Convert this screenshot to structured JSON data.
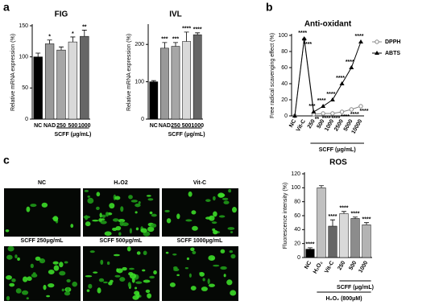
{
  "chart_data": [
    {
      "type": "bar",
      "panel": "a",
      "title": "FIG",
      "ylabel": "Relative mRNA expression (%)",
      "xlabel": "SCFF (μg/mL)",
      "categories": [
        "NC",
        "NAD",
        "250",
        "500",
        "1000"
      ],
      "values": [
        100,
        121,
        111,
        124,
        133
      ],
      "error": [
        6,
        6,
        5,
        8,
        10
      ],
      "significance": [
        "",
        "*",
        "",
        "*",
        "**"
      ],
      "colors": [
        "#000000",
        "#999999",
        "#a6a6a6",
        "#d9d9d9",
        "#666666"
      ],
      "ylim": [
        0,
        150
      ],
      "yticks": [
        0,
        50,
        100,
        150
      ]
    },
    {
      "type": "bar",
      "title": "IVL",
      "ylabel": "Relative mRNA expression (%)",
      "xlabel": "SCFF (μg/mL)",
      "categories": [
        "NC",
        "NAD",
        "250",
        "500",
        "1000"
      ],
      "values": [
        100,
        190,
        195,
        208,
        226
      ],
      "error": [
        3,
        15,
        10,
        25,
        5
      ],
      "significance": [
        "",
        "***",
        "***",
        "****",
        "****"
      ],
      "colors": [
        "#000000",
        "#999999",
        "#a6a6a6",
        "#d9d9d9",
        "#666666"
      ],
      "ylim": [
        0,
        250
      ],
      "yticks": [
        0,
        100,
        200
      ]
    },
    {
      "type": "line",
      "panel": "b",
      "title": "Anti-oxidant",
      "ylabel": "Free radical scavenging effect (%)",
      "xlabel": "SCFF (μg/mL)",
      "categories": [
        "NC",
        "Vit-C",
        "250",
        "500",
        "1000",
        "2500",
        "5000",
        "10000"
      ],
      "series": [
        {
          "name": "DPPH",
          "color": "#888888",
          "marker": "circle",
          "values": [
            0,
            95,
            2,
            3,
            3,
            5,
            8,
            12
          ],
          "significance": [
            "",
            "****",
            "**",
            "****",
            "****",
            "****",
            "****",
            "****"
          ]
        },
        {
          "name": "ABTS",
          "color": "#000000",
          "marker": "triangle",
          "values": [
            0,
            96,
            5,
            12,
            20,
            40,
            60,
            92
          ],
          "significance": [
            "",
            "****",
            "***",
            "****",
            "****",
            "****",
            "****",
            "****"
          ]
        }
      ],
      "ylim": [
        0,
        100
      ],
      "yticks": [
        0,
        20,
        40,
        60,
        80,
        100
      ],
      "legend": "right"
    },
    {
      "type": "bar",
      "title": "ROS",
      "ylabel": "Fluorescence intensity (%)",
      "xlabel": "SCFF (μg/mL)",
      "xlabel2": "H₂O₂ (800μM)",
      "categories": [
        "NC",
        "H₂O₂",
        "Vit-C",
        "250",
        "500",
        "1000"
      ],
      "values": [
        12,
        100,
        45,
        63,
        56,
        47
      ],
      "error": [
        2,
        3,
        9,
        3,
        2,
        3
      ],
      "significance": [
        "****",
        "",
        "****",
        "****",
        "****",
        "****"
      ],
      "colors": [
        "#000000",
        "#c0c0c0",
        "#666666",
        "#d9d9d9",
        "#8c8c8c",
        "#b3b3b3"
      ],
      "ylim": [
        0,
        120
      ],
      "yticks": [
        0,
        20,
        40,
        60,
        80,
        100,
        120
      ]
    }
  ],
  "image_panel": {
    "panel": "c",
    "labels": [
      "NC",
      "H₂O2",
      "Vit-C",
      "SCFF 250μg/mL",
      "SCFF 500μg/mL",
      "SCFF 1000μg/mL"
    ]
  }
}
